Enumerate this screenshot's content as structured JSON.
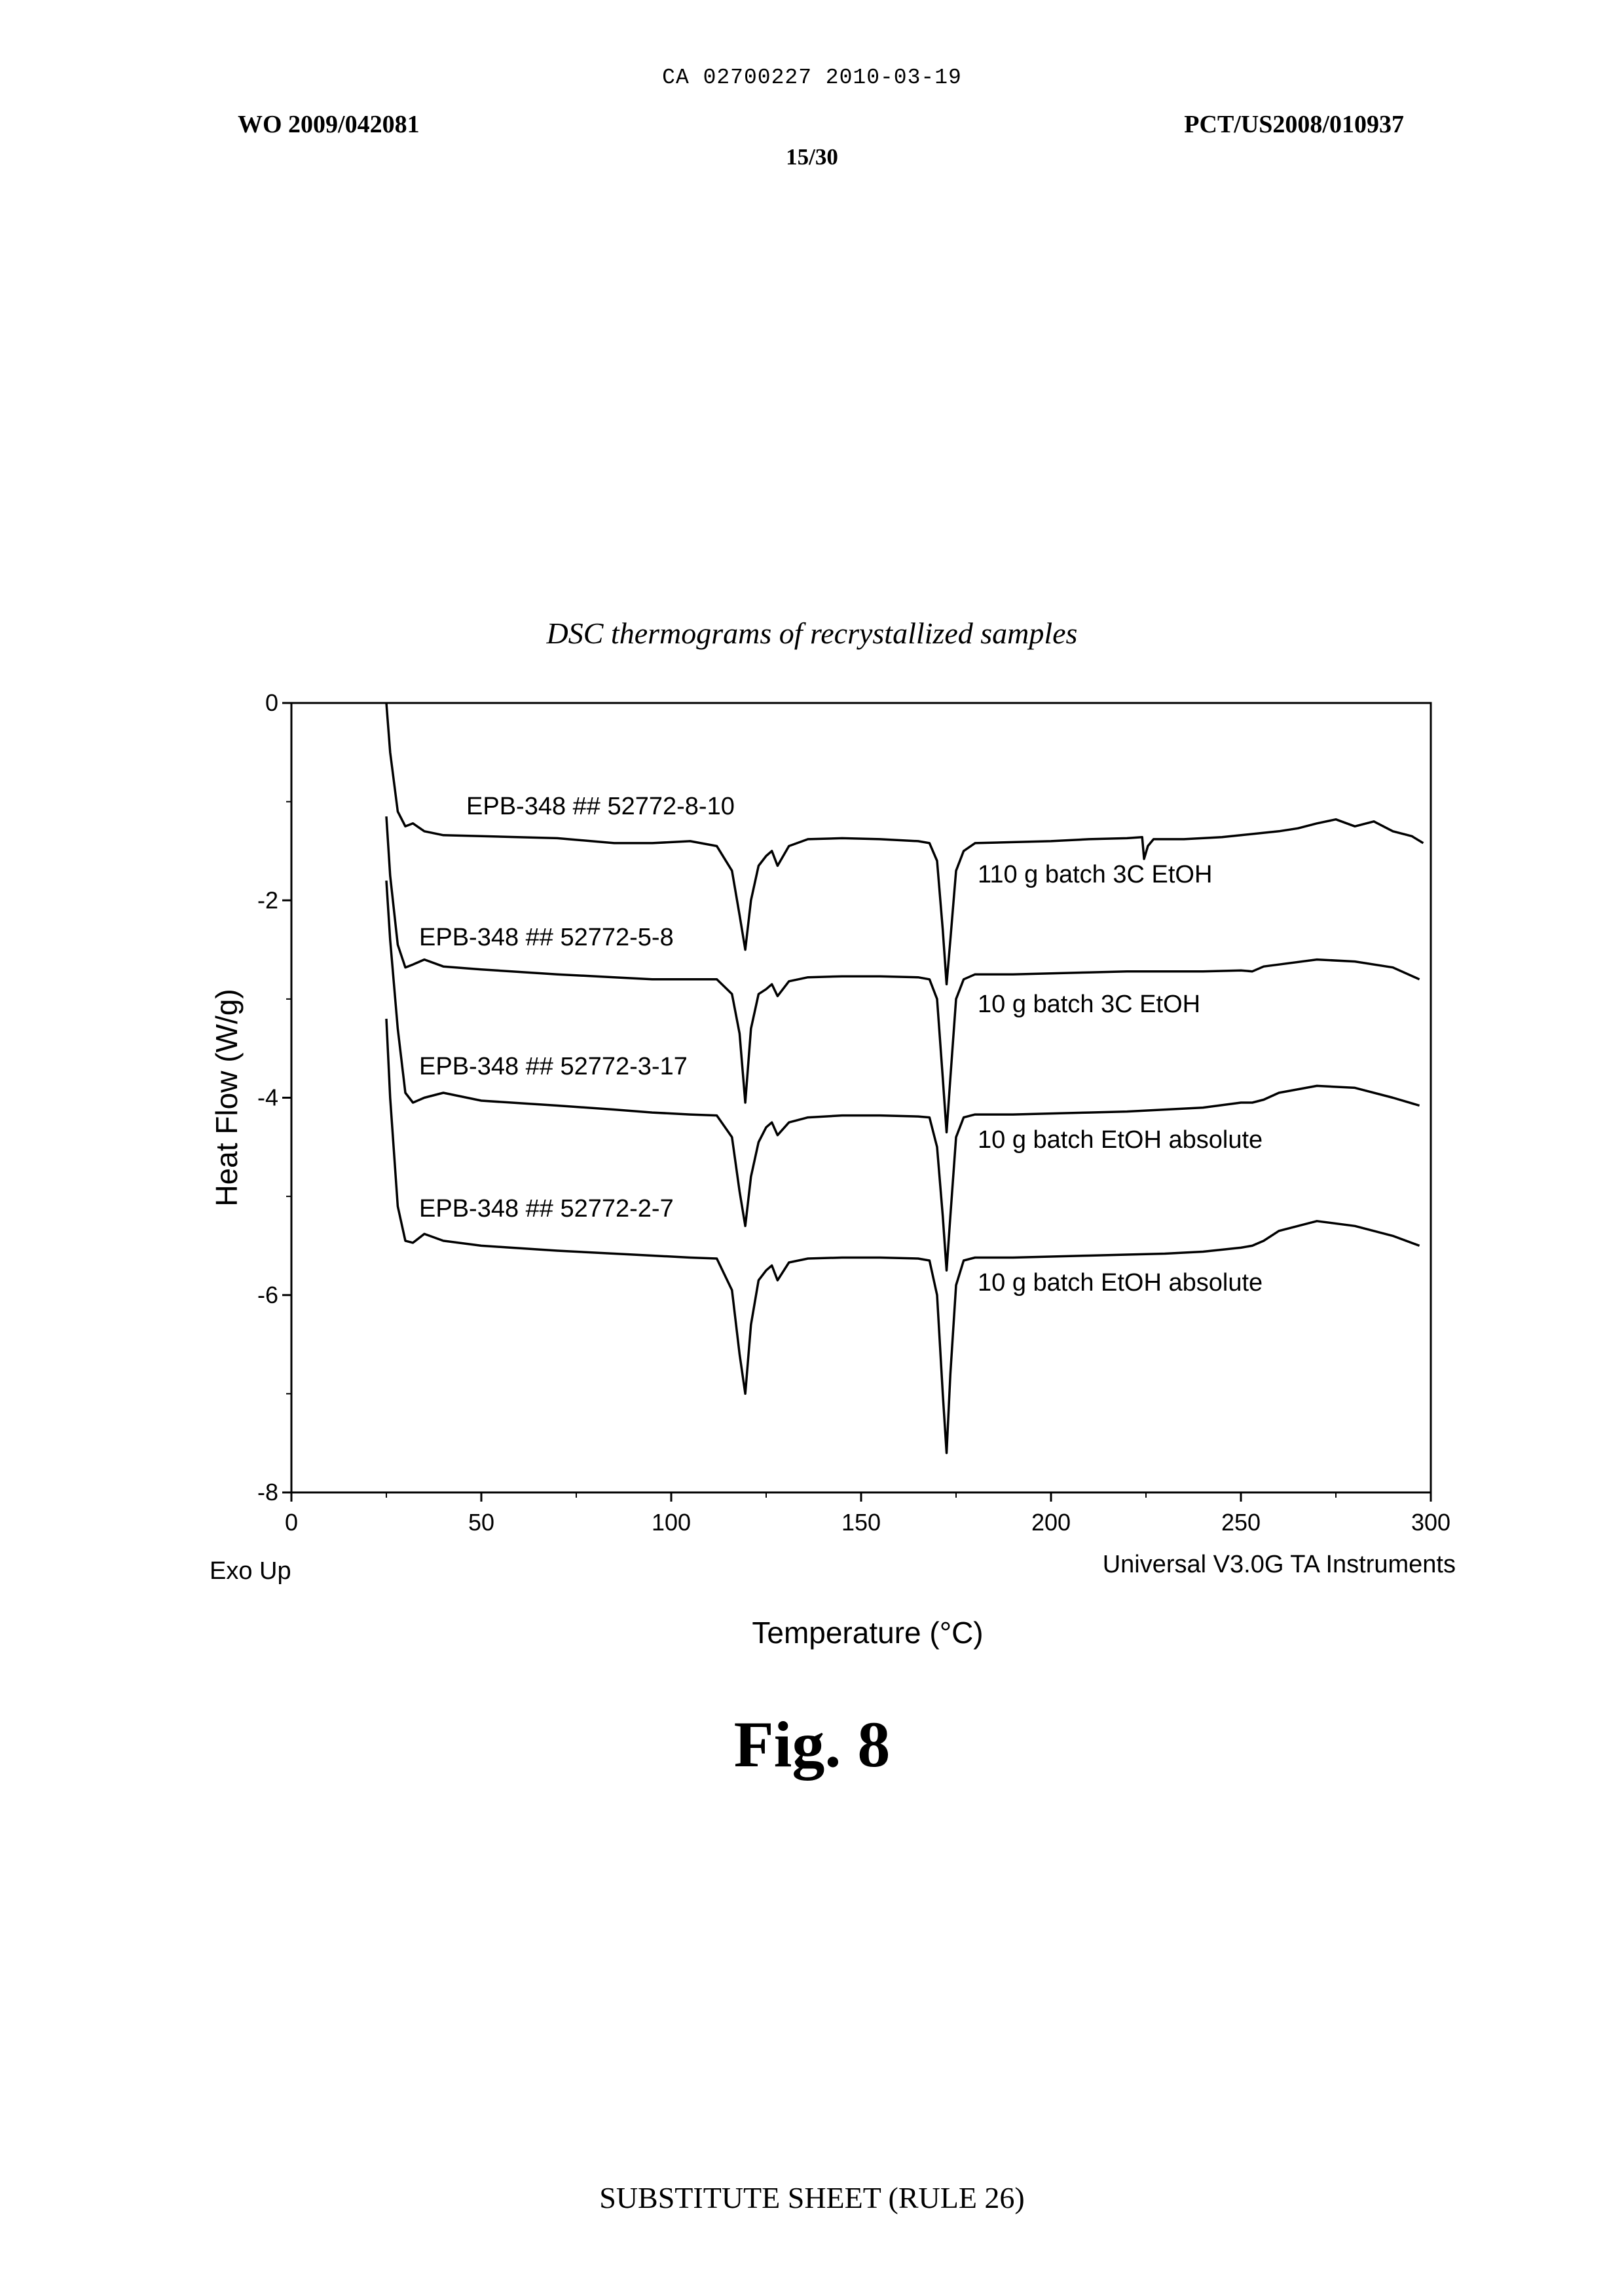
{
  "document": {
    "ca_header": "CA 02700227 2010-03-19",
    "wo_number": "WO 2009/042081",
    "pct_number": "PCT/US2008/010937",
    "sheet_number": "15/30",
    "figure_label": "Fig. 8",
    "footer": "SUBSTITUTE SHEET (RULE 26)"
  },
  "chart_data": {
    "type": "line",
    "title": "DSC thermograms of recrystallized samples",
    "xlabel": "Temperature (°C)",
    "ylabel": "Heat Flow (W/g)",
    "xlim": [
      0,
      300
    ],
    "ylim": [
      -8,
      0
    ],
    "x_ticks": [
      "0",
      "50",
      "100",
      "150",
      "200",
      "250",
      "300"
    ],
    "y_ticks": [
      "0",
      "-2",
      "-4",
      "-6",
      "-8"
    ],
    "exo_label": "Exo Up",
    "instrument_label": "Universal V3.0G TA Instruments",
    "grid": false,
    "series": [
      {
        "name": "EPB-348 ## 52772-8-10",
        "annotation": "110 g batch 3C EtOH",
        "x": [
          25,
          26,
          28,
          30,
          32,
          35,
          40,
          50,
          70,
          85,
          95,
          105,
          112,
          116,
          118,
          119.5,
          121,
          123,
          125,
          126.5,
          128,
          131,
          136,
          145,
          155,
          165,
          168,
          170,
          171.5,
          172.5,
          173.5,
          175,
          177,
          180,
          190,
          200,
          210,
          220,
          224,
          224.5,
          225.5,
          227,
          235,
          245,
          250,
          255,
          260,
          265,
          270,
          275,
          280,
          285,
          290,
          295,
          298
        ],
        "y": [
          0,
          -0.5,
          -1.1,
          -1.25,
          -1.22,
          -1.3,
          -1.34,
          -1.35,
          -1.37,
          -1.42,
          -1.42,
          -1.4,
          -1.45,
          -1.7,
          -2.15,
          -2.5,
          -2.0,
          -1.65,
          -1.55,
          -1.5,
          -1.65,
          -1.45,
          -1.38,
          -1.37,
          -1.38,
          -1.4,
          -1.42,
          -1.6,
          -2.3,
          -2.85,
          -2.4,
          -1.7,
          -1.5,
          -1.42,
          -1.41,
          -1.4,
          -1.38,
          -1.37,
          -1.36,
          -1.58,
          -1.45,
          -1.38,
          -1.38,
          -1.36,
          -1.34,
          -1.32,
          -1.3,
          -1.27,
          -1.22,
          -1.18,
          -1.25,
          -1.2,
          -1.3,
          -1.35,
          -1.42
        ]
      },
      {
        "name": "EPB-348 ## 52772-5-8",
        "annotation": "10 g batch 3C EtOH",
        "x": [
          25,
          26,
          28,
          30,
          32,
          35,
          40,
          50,
          70,
          85,
          95,
          105,
          112,
          116,
          118,
          119.5,
          121,
          123,
          125,
          126.5,
          128,
          131,
          136,
          145,
          155,
          165,
          168,
          170,
          171.5,
          172.5,
          173.5,
          175,
          177,
          180,
          190,
          200,
          210,
          220,
          230,
          240,
          250,
          253,
          256,
          260,
          270,
          280,
          290,
          297
        ],
        "y": [
          -1.15,
          -1.75,
          -2.45,
          -2.68,
          -2.65,
          -2.6,
          -2.67,
          -2.7,
          -2.75,
          -2.78,
          -2.8,
          -2.8,
          -2.8,
          -2.95,
          -3.35,
          -4.05,
          -3.3,
          -2.95,
          -2.9,
          -2.85,
          -2.97,
          -2.82,
          -2.78,
          -2.77,
          -2.77,
          -2.78,
          -2.8,
          -3.0,
          -3.8,
          -4.35,
          -3.8,
          -3.0,
          -2.8,
          -2.75,
          -2.75,
          -2.74,
          -2.73,
          -2.72,
          -2.72,
          -2.72,
          -2.71,
          -2.72,
          -2.67,
          -2.65,
          -2.6,
          -2.62,
          -2.68,
          -2.8
        ]
      },
      {
        "name": "EPB-348 ## 52772-3-17",
        "annotation": "10 g batch EtOH absolute",
        "x": [
          25,
          26,
          28,
          30,
          32,
          35,
          40,
          50,
          70,
          85,
          95,
          105,
          112,
          116,
          118,
          119.5,
          121,
          123,
          125,
          126.5,
          128,
          131,
          136,
          145,
          155,
          165,
          168,
          170,
          171.5,
          172.5,
          173.5,
          175,
          177,
          180,
          190,
          200,
          210,
          220,
          230,
          240,
          250,
          253,
          256,
          260,
          270,
          280,
          290,
          297
        ],
        "y": [
          -1.8,
          -2.4,
          -3.3,
          -3.95,
          -4.05,
          -4.0,
          -3.95,
          -4.03,
          -4.08,
          -4.12,
          -4.15,
          -4.17,
          -4.18,
          -4.4,
          -4.95,
          -5.3,
          -4.8,
          -4.45,
          -4.3,
          -4.25,
          -4.38,
          -4.25,
          -4.2,
          -4.18,
          -4.18,
          -4.19,
          -4.2,
          -4.5,
          -5.2,
          -5.75,
          -5.2,
          -4.4,
          -4.2,
          -4.17,
          -4.17,
          -4.16,
          -4.15,
          -4.14,
          -4.12,
          -4.1,
          -4.05,
          -4.05,
          -4.02,
          -3.95,
          -3.88,
          -3.9,
          -4.0,
          -4.08
        ]
      },
      {
        "name": "EPB-348 ## 52772-2-7",
        "annotation": "10 g batch EtOH absolute",
        "x": [
          25,
          26,
          28,
          30,
          32,
          35,
          40,
          50,
          70,
          85,
          95,
          105,
          112,
          116,
          118,
          119.5,
          121,
          123,
          125,
          126.5,
          128,
          131,
          136,
          145,
          155,
          165,
          168,
          170,
          171.5,
          172.5,
          173.5,
          175,
          177,
          180,
          190,
          200,
          210,
          220,
          230,
          240,
          250,
          253,
          256,
          260,
          270,
          280,
          290,
          297
        ],
        "y": [
          -3.2,
          -4.0,
          -5.1,
          -5.45,
          -5.47,
          -5.38,
          -5.45,
          -5.5,
          -5.55,
          -5.58,
          -5.6,
          -5.62,
          -5.63,
          -5.95,
          -6.6,
          -7.0,
          -6.3,
          -5.85,
          -5.75,
          -5.7,
          -5.85,
          -5.67,
          -5.63,
          -5.62,
          -5.62,
          -5.63,
          -5.65,
          -6.0,
          -7.0,
          -7.6,
          -6.8,
          -5.9,
          -5.65,
          -5.62,
          -5.62,
          -5.61,
          -5.6,
          -5.59,
          -5.58,
          -5.56,
          -5.52,
          -5.5,
          -5.45,
          -5.35,
          -5.25,
          -5.3,
          -5.4,
          -5.5
        ]
      }
    ]
  }
}
